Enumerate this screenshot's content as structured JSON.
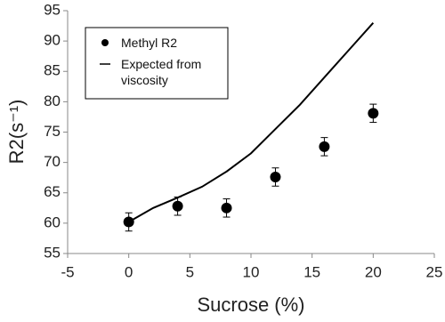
{
  "chart_data": {
    "type": "scatter",
    "x_label": "Sucrose (%)",
    "y_label": "R2(s⁻¹)",
    "xlim": [
      -5,
      25
    ],
    "xticks": [
      -5,
      0,
      5,
      10,
      15,
      20,
      25
    ],
    "ylim": [
      55,
      95
    ],
    "yticks": [
      55,
      60,
      65,
      70,
      75,
      80,
      85,
      90,
      95
    ],
    "grid": false,
    "legend": "upper left",
    "series": [
      {
        "name": "Methyl R2",
        "type": "scatter",
        "color": "#000000",
        "x": [
          0,
          4,
          8,
          12,
          16,
          20
        ],
        "values": [
          60.2,
          62.8,
          62.5,
          67.6,
          72.6,
          78.1
        ],
        "errors": [
          1.5,
          1.5,
          1.5,
          1.5,
          1.5,
          1.5
        ]
      },
      {
        "name": "Expected from viscosity",
        "type": "line",
        "color": "#000000",
        "x": [
          0,
          2,
          4,
          6,
          8,
          10,
          12,
          14,
          16,
          18,
          20
        ],
        "values": [
          60.2,
          62.5,
          64.2,
          66,
          68.5,
          71.5,
          75.5,
          79.5,
          84,
          88.5,
          93
        ]
      }
    ]
  }
}
